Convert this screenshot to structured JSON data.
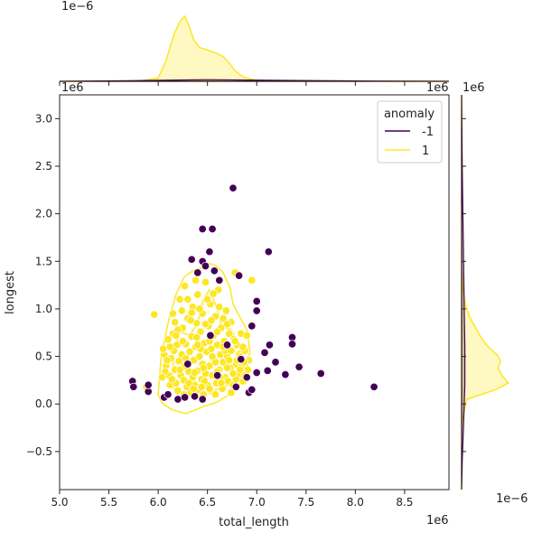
{
  "chart_data": {
    "type": "scatter",
    "xlabel": "total_length",
    "ylabel": "longest",
    "x_scale_label": "1e6",
    "y_scale_label": "1e6",
    "top_marginal_scale_label": "1e−6",
    "right_marginal_scale_label": "1e−6",
    "x_ticks": [
      "5.0",
      "5.5",
      "6.0",
      "6.5",
      "7.0",
      "7.5",
      "8.0",
      "8.5"
    ],
    "y_ticks": [
      "−0.5",
      "0.0",
      "0.5",
      "1.0",
      "1.5",
      "2.0",
      "2.5",
      "3.0"
    ],
    "xlim": [
      5.0,
      8.95
    ],
    "ylim": [
      -0.9,
      3.25
    ],
    "legend": {
      "title": "anomaly",
      "placement": "top-right",
      "entries": [
        {
          "label": "-1",
          "color": "#440154"
        },
        {
          "label": "1",
          "color": "#fde725"
        }
      ]
    },
    "colors": {
      "anomaly_neg": "#440154",
      "normal": "#fde725"
    },
    "series": [
      {
        "name": "-1",
        "color": "#440154",
        "points": [
          [
            6.76,
            2.27
          ],
          [
            6.45,
            1.84
          ],
          [
            6.55,
            1.84
          ],
          [
            6.34,
            1.52
          ],
          [
            6.45,
            1.5
          ],
          [
            6.48,
            1.45
          ],
          [
            6.52,
            1.6
          ],
          [
            6.57,
            1.4
          ],
          [
            6.62,
            1.3
          ],
          [
            6.4,
            1.38
          ],
          [
            6.82,
            1.35
          ],
          [
            7.12,
            1.6
          ],
          [
            7.0,
            1.08
          ],
          [
            7.0,
            0.98
          ],
          [
            6.95,
            0.82
          ],
          [
            7.13,
            0.62
          ],
          [
            7.08,
            0.54
          ],
          [
            7.36,
            0.7
          ],
          [
            7.36,
            0.63
          ],
          [
            7.19,
            0.44
          ],
          [
            7.11,
            0.35
          ],
          [
            7.0,
            0.33
          ],
          [
            7.29,
            0.31
          ],
          [
            7.43,
            0.39
          ],
          [
            7.65,
            0.32
          ],
          [
            8.19,
            0.18
          ],
          [
            6.92,
            0.12
          ],
          [
            6.95,
            0.15
          ],
          [
            6.9,
            0.28
          ],
          [
            6.79,
            0.18
          ],
          [
            6.84,
            0.47
          ],
          [
            6.37,
            0.08
          ],
          [
            6.06,
            0.07
          ],
          [
            5.9,
            0.13
          ],
          [
            5.9,
            0.2
          ],
          [
            5.74,
            0.24
          ],
          [
            5.75,
            0.18
          ],
          [
            6.2,
            0.05
          ],
          [
            6.27,
            0.07
          ],
          [
            6.45,
            0.05
          ],
          [
            6.6,
            0.3
          ],
          [
            6.3,
            0.42
          ],
          [
            6.1,
            0.1
          ],
          [
            6.7,
            0.62
          ],
          [
            6.53,
            0.72
          ]
        ]
      },
      {
        "name": "1",
        "color": "#fde725",
        "points": [
          [
            5.96,
            0.94
          ],
          [
            5.88,
            0.18
          ],
          [
            6.06,
            0.52
          ],
          [
            6.05,
            0.58
          ],
          [
            6.08,
            0.4
          ],
          [
            6.1,
            0.68
          ],
          [
            6.11,
            0.3
          ],
          [
            6.12,
            0.2
          ],
          [
            6.13,
            0.48
          ],
          [
            6.15,
            0.74
          ],
          [
            6.15,
            0.95
          ],
          [
            6.17,
            0.36
          ],
          [
            6.17,
            0.86
          ],
          [
            6.18,
            0.22
          ],
          [
            6.19,
            0.62
          ],
          [
            6.2,
            0.14
          ],
          [
            6.21,
            0.45
          ],
          [
            6.22,
            1.1
          ],
          [
            6.23,
            0.3
          ],
          [
            6.24,
            0.52
          ],
          [
            6.25,
            0.8
          ],
          [
            6.26,
            0.25
          ],
          [
            6.27,
            1.24
          ],
          [
            6.27,
            0.4
          ],
          [
            6.28,
            0.63
          ],
          [
            6.29,
            0.18
          ],
          [
            6.3,
            0.9
          ],
          [
            6.31,
            0.34
          ],
          [
            6.32,
            0.55
          ],
          [
            6.33,
            0.12
          ],
          [
            6.34,
            0.71
          ],
          [
            6.35,
            0.28
          ],
          [
            6.35,
            1.02
          ],
          [
            6.36,
            0.46
          ],
          [
            6.37,
            0.2
          ],
          [
            6.38,
            0.6
          ],
          [
            6.39,
            0.85
          ],
          [
            6.4,
            0.35
          ],
          [
            6.4,
            1.15
          ],
          [
            6.41,
            0.15
          ],
          [
            6.42,
            0.5
          ],
          [
            6.43,
            0.76
          ],
          [
            6.44,
            0.26
          ],
          [
            6.45,
            0.95
          ],
          [
            6.45,
            0.42
          ],
          [
            6.46,
            0.1
          ],
          [
            6.47,
            0.64
          ],
          [
            6.48,
            0.32
          ],
          [
            6.48,
            1.28
          ],
          [
            6.49,
            0.55
          ],
          [
            6.5,
            0.2
          ],
          [
            6.51,
            0.82
          ],
          [
            6.52,
            0.4
          ],
          [
            6.53,
            1.05
          ],
          [
            6.53,
            0.14
          ],
          [
            6.54,
            0.58
          ],
          [
            6.55,
            0.3
          ],
          [
            6.56,
            0.72
          ],
          [
            6.57,
            0.46
          ],
          [
            6.58,
            0.92
          ],
          [
            6.59,
            0.22
          ],
          [
            6.6,
            0.62
          ],
          [
            6.61,
            1.2
          ],
          [
            6.62,
            0.36
          ],
          [
            6.63,
            0.52
          ],
          [
            6.64,
            0.8
          ],
          [
            6.65,
            0.16
          ],
          [
            6.66,
            0.44
          ],
          [
            6.67,
            0.66
          ],
          [
            6.68,
            0.28
          ],
          [
            6.69,
            0.98
          ],
          [
            6.7,
            0.5
          ],
          [
            6.71,
            0.24
          ],
          [
            6.72,
            0.74
          ],
          [
            6.73,
            0.38
          ],
          [
            6.74,
            0.86
          ],
          [
            6.75,
            0.56
          ],
          [
            6.76,
            0.2
          ],
          [
            6.77,
            0.68
          ],
          [
            6.78,
            1.38
          ],
          [
            6.79,
            0.42
          ],
          [
            6.8,
            0.62
          ],
          [
            6.81,
            0.3
          ],
          [
            6.82,
            0.52
          ],
          [
            6.84,
            0.74
          ],
          [
            6.85,
            0.4
          ],
          [
            6.86,
            0.24
          ],
          [
            6.88,
            0.56
          ],
          [
            6.9,
            0.72
          ],
          [
            6.92,
            0.46
          ],
          [
            6.95,
            1.3
          ],
          [
            6.25,
            0.66
          ],
          [
            6.33,
            0.88
          ],
          [
            6.37,
            0.33
          ],
          [
            6.43,
            0.58
          ],
          [
            6.47,
            0.24
          ],
          [
            6.52,
            0.66
          ],
          [
            6.58,
            0.44
          ],
          [
            6.63,
            0.28
          ],
          [
            6.68,
            0.56
          ],
          [
            6.28,
            0.48
          ],
          [
            6.31,
            0.22
          ],
          [
            6.39,
            0.7
          ],
          [
            6.46,
            0.38
          ],
          [
            6.55,
            0.5
          ],
          [
            6.6,
            0.34
          ],
          [
            6.66,
            0.9
          ],
          [
            6.72,
            0.46
          ],
          [
            6.79,
            0.26
          ],
          [
            6.22,
            0.36
          ],
          [
            6.16,
            0.56
          ],
          [
            6.14,
            0.26
          ],
          [
            6.2,
            0.78
          ],
          [
            6.42,
            1.0
          ],
          [
            6.5,
            1.1
          ],
          [
            6.56,
            1.16
          ],
          [
            6.62,
            1.02
          ],
          [
            6.7,
            0.84
          ],
          [
            6.76,
            0.32
          ],
          [
            6.83,
            0.36
          ],
          [
            6.88,
            0.3
          ],
          [
            6.36,
            0.16
          ],
          [
            6.44,
            0.18
          ],
          [
            6.52,
            0.16
          ],
          [
            6.58,
            0.1
          ],
          [
            6.64,
            0.22
          ],
          [
            6.26,
            0.1
          ],
          [
            6.74,
            0.12
          ],
          [
            6.8,
            0.46
          ],
          [
            6.86,
            0.6
          ],
          [
            6.3,
            1.1
          ],
          [
            6.38,
            1.3
          ],
          [
            6.34,
            0.96
          ],
          [
            6.24,
            0.98
          ],
          [
            6.18,
            0.72
          ],
          [
            6.12,
            0.6
          ],
          [
            6.09,
            0.46
          ],
          [
            6.07,
            0.34
          ],
          [
            6.04,
            0.28
          ],
          [
            6.4,
            0.62
          ],
          [
            6.48,
            0.84
          ],
          [
            6.54,
            0.88
          ],
          [
            6.6,
            0.76
          ],
          [
            6.66,
            0.6
          ],
          [
            6.7,
            0.38
          ],
          [
            6.74,
            0.56
          ],
          [
            6.78,
            0.66
          ],
          [
            6.83,
            0.5
          ],
          [
            6.87,
            0.44
          ],
          [
            6.91,
            0.36
          ]
        ]
      }
    ],
    "kde_levels": {
      "outer": [
        [
          6.0,
          0.1
        ],
        [
          6.03,
          0.5
        ],
        [
          6.1,
          0.85
        ],
        [
          6.18,
          1.15
        ],
        [
          6.26,
          1.33
        ],
        [
          6.35,
          1.4
        ],
        [
          6.44,
          1.43
        ],
        [
          6.5,
          1.48
        ],
        [
          6.58,
          1.46
        ],
        [
          6.66,
          1.38
        ],
        [
          6.73,
          1.22
        ],
        [
          6.76,
          1.05
        ],
        [
          6.82,
          0.93
        ],
        [
          6.9,
          0.78
        ],
        [
          6.93,
          0.55
        ],
        [
          6.88,
          0.3
        ],
        [
          6.78,
          0.14
        ],
        [
          6.6,
          0.02
        ],
        [
          6.45,
          -0.03
        ],
        [
          6.28,
          -0.1
        ],
        [
          6.14,
          -0.06
        ],
        [
          6.04,
          0.01
        ]
      ],
      "inner": [
        [
          6.14,
          0.18
        ],
        [
          6.16,
          0.55
        ],
        [
          6.22,
          0.76
        ],
        [
          6.32,
          0.72
        ],
        [
          6.4,
          0.85
        ],
        [
          6.46,
          1.1
        ],
        [
          6.52,
          1.2
        ],
        [
          6.6,
          1.0
        ],
        [
          6.64,
          0.82
        ],
        [
          6.74,
          0.78
        ],
        [
          6.82,
          0.62
        ],
        [
          6.86,
          0.42
        ],
        [
          6.8,
          0.24
        ],
        [
          6.62,
          0.16
        ],
        [
          6.48,
          0.12
        ],
        [
          6.32,
          0.1
        ],
        [
          6.2,
          0.12
        ]
      ]
    },
    "top_marginal": {
      "normal": [
        [
          5.0,
          0.0
        ],
        [
          5.8,
          0.001
        ],
        [
          6.0,
          0.05
        ],
        [
          6.08,
          0.32
        ],
        [
          6.16,
          0.72
        ],
        [
          6.22,
          0.92
        ],
        [
          6.27,
          1.0
        ],
        [
          6.31,
          0.86
        ],
        [
          6.36,
          0.64
        ],
        [
          6.42,
          0.52
        ],
        [
          6.5,
          0.48
        ],
        [
          6.58,
          0.44
        ],
        [
          6.66,
          0.38
        ],
        [
          6.72,
          0.28
        ],
        [
          6.78,
          0.16
        ],
        [
          6.86,
          0.07
        ],
        [
          6.98,
          0.02
        ],
        [
          7.2,
          0.0
        ],
        [
          8.95,
          0.0
        ]
      ],
      "anomaly": [
        [
          5.0,
          0.0
        ],
        [
          5.7,
          0.01
        ],
        [
          6.2,
          0.02
        ],
        [
          6.5,
          0.025
        ],
        [
          6.9,
          0.02
        ],
        [
          7.4,
          0.012
        ],
        [
          8.2,
          0.004
        ],
        [
          8.95,
          0.0
        ]
      ]
    },
    "right_marginal": {
      "normal": [
        [
          -0.9,
          0.0
        ],
        [
          -0.2,
          0.0
        ],
        [
          0.05,
          0.08
        ],
        [
          0.15,
          0.52
        ],
        [
          0.22,
          0.72
        ],
        [
          0.3,
          0.62
        ],
        [
          0.38,
          0.56
        ],
        [
          0.45,
          0.6
        ],
        [
          0.52,
          0.54
        ],
        [
          0.62,
          0.38
        ],
        [
          0.72,
          0.28
        ],
        [
          0.82,
          0.2
        ],
        [
          0.92,
          0.12
        ],
        [
          1.05,
          0.06
        ],
        [
          1.2,
          0.02
        ],
        [
          1.4,
          0.0
        ],
        [
          3.25,
          0.0
        ]
      ],
      "anomaly": [
        [
          -0.9,
          0.0
        ],
        [
          -0.6,
          0.01
        ],
        [
          -0.2,
          0.03
        ],
        [
          0.2,
          0.05
        ],
        [
          0.6,
          0.05
        ],
        [
          1.0,
          0.04
        ],
        [
          1.5,
          0.03
        ],
        [
          2.0,
          0.02
        ],
        [
          2.5,
          0.01
        ],
        [
          3.25,
          0.0
        ]
      ]
    }
  }
}
